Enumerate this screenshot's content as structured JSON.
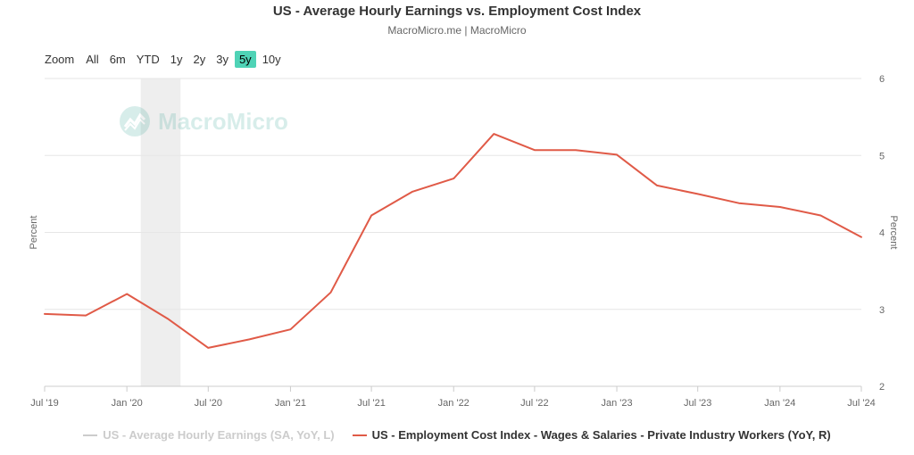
{
  "header": {
    "title": "US - Average Hourly Earnings vs. Employment Cost Index",
    "subtitle": "MacroMicro.me | MacroMicro"
  },
  "watermark": {
    "text": "MacroMicro",
    "icon": "macromicro-logo-icon"
  },
  "range_selector": {
    "zoom_label": "Zoom",
    "buttons": [
      {
        "label": "All",
        "active": false
      },
      {
        "label": "6m",
        "active": false
      },
      {
        "label": "YTD",
        "active": false
      },
      {
        "label": "1y",
        "active": false
      },
      {
        "label": "2y",
        "active": false
      },
      {
        "label": "3y",
        "active": false
      },
      {
        "label": "5y",
        "active": true
      },
      {
        "label": "10y",
        "active": false
      }
    ]
  },
  "legend": {
    "items": [
      {
        "label": "US - Average Hourly Earnings (SA, YoY, L)",
        "color": "#cccccc",
        "visible": false
      },
      {
        "label": "US - Employment Cost Index - Wages & Salaries - Private Industry Workers (YoY, R)",
        "color": "#e05a47",
        "visible": true
      }
    ]
  },
  "chart_data": {
    "type": "line",
    "title": "US - Average Hourly Earnings vs. Employment Cost Index",
    "x_axis": {
      "type": "date",
      "range": [
        "2019-07-01",
        "2024-07-01"
      ],
      "ticks": [
        {
          "date": "2019-07-01",
          "label": "Jul '19"
        },
        {
          "date": "2020-01-01",
          "label": "Jan '20"
        },
        {
          "date": "2020-07-01",
          "label": "Jul '20"
        },
        {
          "date": "2021-01-01",
          "label": "Jan '21"
        },
        {
          "date": "2021-07-01",
          "label": "Jul '21"
        },
        {
          "date": "2022-01-01",
          "label": "Jan '22"
        },
        {
          "date": "2022-07-01",
          "label": "Jul '22"
        },
        {
          "date": "2023-01-01",
          "label": "Jan '23"
        },
        {
          "date": "2023-07-01",
          "label": "Jul '23"
        },
        {
          "date": "2024-01-01",
          "label": "Jan '24"
        },
        {
          "date": "2024-07-01",
          "label": "Jul '24"
        }
      ]
    },
    "y_axis_left": {
      "label": "Percent"
    },
    "y_axis_right": {
      "label": "Percent",
      "range": [
        2,
        6
      ],
      "ticks": [
        2,
        3,
        4,
        5,
        6
      ]
    },
    "recession_band": {
      "start": "2020-02-01",
      "end": "2020-04-30"
    },
    "series": [
      {
        "name": "US - Employment Cost Index - Wages & Salaries - Private Industry Workers (YoY, R)",
        "color": "#e05a47",
        "axis": "right",
        "points": [
          {
            "date": "2019-07-01",
            "value": 2.94
          },
          {
            "date": "2019-10-01",
            "value": 2.92
          },
          {
            "date": "2020-01-01",
            "value": 3.2
          },
          {
            "date": "2020-04-01",
            "value": 2.88
          },
          {
            "date": "2020-07-01",
            "value": 2.5
          },
          {
            "date": "2020-10-01",
            "value": 2.61
          },
          {
            "date": "2021-01-01",
            "value": 2.74
          },
          {
            "date": "2021-04-01",
            "value": 3.22
          },
          {
            "date": "2021-07-01",
            "value": 4.22
          },
          {
            "date": "2021-10-01",
            "value": 4.53
          },
          {
            "date": "2022-01-01",
            "value": 4.7
          },
          {
            "date": "2022-04-01",
            "value": 5.28
          },
          {
            "date": "2022-07-01",
            "value": 5.07
          },
          {
            "date": "2022-10-01",
            "value": 5.07
          },
          {
            "date": "2023-01-01",
            "value": 5.01
          },
          {
            "date": "2023-04-01",
            "value": 4.61
          },
          {
            "date": "2023-07-01",
            "value": 4.5
          },
          {
            "date": "2023-10-01",
            "value": 4.38
          },
          {
            "date": "2024-01-01",
            "value": 4.33
          },
          {
            "date": "2024-04-01",
            "value": 4.22
          },
          {
            "date": "2024-07-01",
            "value": 3.94
          }
        ]
      }
    ]
  }
}
